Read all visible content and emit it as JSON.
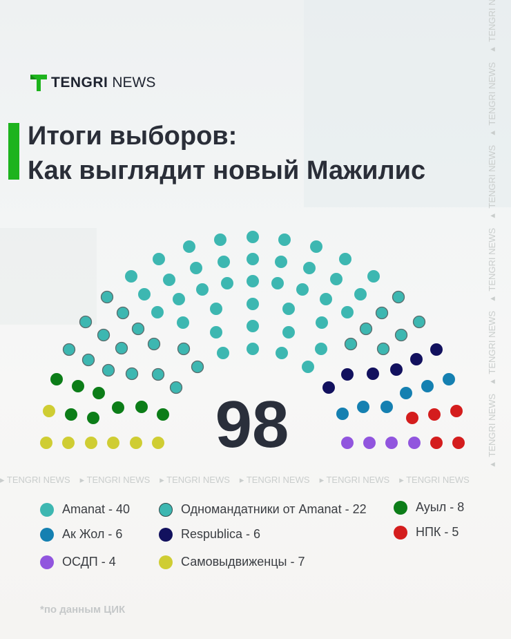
{
  "brand": {
    "name_bold": "TENGRI",
    "name_light": "NEWS",
    "accent": "#1db31d"
  },
  "title": {
    "line1": "Итоги выборов:",
    "line2": "Как выглядит новый Мажилис"
  },
  "watermark": "TENGRI NEWS",
  "chart_data": {
    "type": "parliament",
    "total": "98",
    "series": [
      {
        "name": "Amanat",
        "value": 40,
        "color": "#3db7b1",
        "outlined": false
      },
      {
        "name": "Одномандатники от Amanat",
        "value": 22,
        "color": "#3db7b1",
        "outlined": true
      },
      {
        "name": "Ауыл",
        "value": 8,
        "color": "#0c7d18",
        "outlined": false
      },
      {
        "name": "Ак Жол",
        "value": 6,
        "color": "#1580b1",
        "outlined": false
      },
      {
        "name": "Respublica",
        "value": 6,
        "color": "#12115e",
        "outlined": false
      },
      {
        "name": "НПК",
        "value": 5,
        "color": "#d41d1d",
        "outlined": false
      },
      {
        "name": "ОСДП",
        "value": 4,
        "color": "#9155de",
        "outlined": false
      },
      {
        "name": "Самовыдвиженцы",
        "value": 7,
        "color": "#cfcd33",
        "outlined": false
      }
    ]
  },
  "legend": [
    {
      "label": "Amanat - 40",
      "series": 0
    },
    {
      "label": "Одномандатники от Amanat - 22",
      "series": 1
    },
    {
      "label": "Ауыл - 8",
      "series": 2
    },
    {
      "label": "Ак Жол - 6",
      "series": 3
    },
    {
      "label": "Respublica - 6",
      "series": 4
    },
    {
      "label": "НПК - 5",
      "series": 5
    },
    {
      "label": "ОСДП - 4",
      "series": 6
    },
    {
      "label": "Самовыдвиженцы - 7",
      "series": 7
    }
  ],
  "note": "*по данным ЦИК"
}
